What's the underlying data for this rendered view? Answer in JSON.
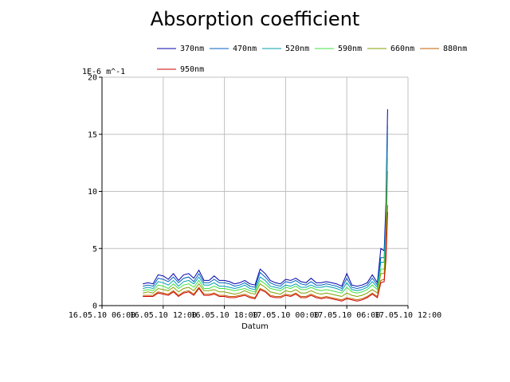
{
  "chart_data": {
    "type": "line",
    "title": "Absorption coefficient",
    "xlabel": "Datum",
    "ylabel": "1E-6 m^-1",
    "ylim": [
      0,
      20
    ],
    "yticks": [
      0,
      5,
      10,
      15,
      20
    ],
    "x_range": [
      "16.05.10 06:00",
      "17.05.10 12:00"
    ],
    "xticks": [
      "16.05.10 06:00",
      "16.05.10 12:00",
      "16.05.10 18:00",
      "17.05.10 00:00",
      "17.05.10 06:00",
      "17.05.10 12:00"
    ],
    "grid": true,
    "legend_position": "top",
    "x": [
      "16.05.10 10:00",
      "16.05.10 10:30",
      "16.05.10 11:00",
      "16.05.10 11:30",
      "16.05.10 12:00",
      "16.05.10 12:30",
      "16.05.10 13:00",
      "16.05.10 13:30",
      "16.05.10 14:00",
      "16.05.10 14:30",
      "16.05.10 15:00",
      "16.05.10 15:30",
      "16.05.10 16:00",
      "16.05.10 16:30",
      "16.05.10 17:00",
      "16.05.10 17:30",
      "16.05.10 18:00",
      "16.05.10 18:30",
      "16.05.10 19:00",
      "16.05.10 19:30",
      "16.05.10 20:00",
      "16.05.10 20:30",
      "16.05.10 21:00",
      "16.05.10 21:30",
      "16.05.10 22:00",
      "16.05.10 22:30",
      "16.05.10 23:00",
      "16.05.10 23:30",
      "17.05.10 00:00",
      "17.05.10 00:30",
      "17.05.10 01:00",
      "17.05.10 01:30",
      "17.05.10 02:00",
      "17.05.10 02:30",
      "17.05.10 03:00",
      "17.05.10 03:30",
      "17.05.10 04:00",
      "17.05.10 04:30",
      "17.05.10 05:00",
      "17.05.10 05:30",
      "17.05.10 06:00",
      "17.05.10 06:30",
      "17.05.10 07:00",
      "17.05.10 07:30",
      "17.05.10 08:00",
      "17.05.10 08:30",
      "17.05.10 09:00",
      "17.05.10 09:20",
      "17.05.10 09:40",
      "17.05.10 09:50",
      "17.05.10 10:00"
    ],
    "series": [
      {
        "name": "370nm",
        "color": "#0000aa",
        "values": [
          1.9,
          2.0,
          1.9,
          2.7,
          2.6,
          2.3,
          2.8,
          2.2,
          2.7,
          2.8,
          2.4,
          3.1,
          2.2,
          2.2,
          2.6,
          2.2,
          2.2,
          2.1,
          1.9,
          2.0,
          2.2,
          1.9,
          1.8,
          3.2,
          2.8,
          2.2,
          2.0,
          1.9,
          2.3,
          2.2,
          2.4,
          2.1,
          2.0,
          2.4,
          2.0,
          2.0,
          2.1,
          2.0,
          1.9,
          1.7,
          2.8,
          1.8,
          1.7,
          1.8,
          2.0,
          2.7,
          2.0,
          5.0,
          4.8,
          9.0,
          17.2
        ]
      },
      {
        "name": "470nm",
        "color": "#0060c0",
        "values": [
          1.7,
          1.8,
          1.7,
          2.4,
          2.3,
          2.1,
          2.5,
          2.0,
          2.4,
          2.5,
          2.1,
          2.8,
          2.0,
          2.0,
          2.3,
          2.0,
          2.0,
          1.9,
          1.7,
          1.8,
          2.0,
          1.7,
          1.6,
          2.9,
          2.5,
          2.0,
          1.8,
          1.7,
          2.1,
          2.0,
          2.2,
          1.9,
          1.8,
          2.1,
          1.8,
          1.8,
          1.9,
          1.8,
          1.7,
          1.5,
          2.4,
          1.6,
          1.5,
          1.6,
          1.8,
          2.4,
          1.8,
          4.2,
          4.2,
          8.0,
          15.8
        ]
      },
      {
        "name": "520nm",
        "color": "#00a0b0",
        "values": [
          1.5,
          1.6,
          1.5,
          2.1,
          2.0,
          1.8,
          2.2,
          1.7,
          2.1,
          2.2,
          1.9,
          2.5,
          1.8,
          1.8,
          2.0,
          1.7,
          1.7,
          1.6,
          1.5,
          1.6,
          1.8,
          1.5,
          1.4,
          2.5,
          2.2,
          1.7,
          1.6,
          1.5,
          1.8,
          1.7,
          1.9,
          1.6,
          1.6,
          1.8,
          1.6,
          1.6,
          1.7,
          1.6,
          1.5,
          1.3,
          2.0,
          1.4,
          1.3,
          1.4,
          1.6,
          2.1,
          1.6,
          3.8,
          3.8,
          7.0,
          14.8
        ]
      },
      {
        "name": "590nm",
        "color": "#40e040",
        "values": [
          1.3,
          1.4,
          1.3,
          1.8,
          1.7,
          1.5,
          1.9,
          1.5,
          1.8,
          1.9,
          1.6,
          2.2,
          1.5,
          1.5,
          1.7,
          1.5,
          1.5,
          1.4,
          1.3,
          1.4,
          1.5,
          1.3,
          1.2,
          2.2,
          1.9,
          1.5,
          1.4,
          1.3,
          1.6,
          1.5,
          1.7,
          1.4,
          1.4,
          1.6,
          1.4,
          1.3,
          1.4,
          1.3,
          1.2,
          1.1,
          1.6,
          1.2,
          1.1,
          1.2,
          1.4,
          1.8,
          1.4,
          3.2,
          3.2,
          6.0,
          13.0
        ]
      },
      {
        "name": "660nm",
        "color": "#80a000",
        "values": [
          1.1,
          1.2,
          1.1,
          1.5,
          1.4,
          1.3,
          1.6,
          1.2,
          1.5,
          1.6,
          1.3,
          1.9,
          1.3,
          1.3,
          1.4,
          1.2,
          1.2,
          1.1,
          1.0,
          1.1,
          1.3,
          1.1,
          1.0,
          1.9,
          1.6,
          1.2,
          1.1,
          1.0,
          1.3,
          1.2,
          1.4,
          1.1,
          1.1,
          1.3,
          1.1,
          1.0,
          1.1,
          1.0,
          0.9,
          0.8,
          1.1,
          0.9,
          0.8,
          0.9,
          1.1,
          1.4,
          1.1,
          2.8,
          2.8,
          5.3,
          11.8
        ]
      },
      {
        "name": "880nm",
        "color": "#c06000",
        "values": [
          0.9,
          0.9,
          0.9,
          1.2,
          1.1,
          1.0,
          1.3,
          0.9,
          1.2,
          1.3,
          1.0,
          1.6,
          1.0,
          1.0,
          1.1,
          0.9,
          0.9,
          0.8,
          0.8,
          0.9,
          1.0,
          0.8,
          0.7,
          1.5,
          1.3,
          0.9,
          0.8,
          0.8,
          1.0,
          0.9,
          1.1,
          0.8,
          0.8,
          1.0,
          0.8,
          0.7,
          0.8,
          0.7,
          0.6,
          0.5,
          0.7,
          0.6,
          0.5,
          0.6,
          0.8,
          1.1,
          0.8,
          2.2,
          2.3,
          4.5,
          8.8
        ]
      },
      {
        "name": "950nm",
        "color": "#d00000",
        "values": [
          0.8,
          0.8,
          0.8,
          1.1,
          1.0,
          0.9,
          1.2,
          0.8,
          1.1,
          1.2,
          0.9,
          1.5,
          0.9,
          0.9,
          1.0,
          0.8,
          0.8,
          0.7,
          0.7,
          0.8,
          0.9,
          0.7,
          0.6,
          1.4,
          1.2,
          0.8,
          0.7,
          0.7,
          0.9,
          0.8,
          1.0,
          0.7,
          0.7,
          0.9,
          0.7,
          0.6,
          0.7,
          0.6,
          0.5,
          0.4,
          0.6,
          0.5,
          0.4,
          0.5,
          0.7,
          1.0,
          0.7,
          2.0,
          2.1,
          4.0,
          8.2
        ]
      }
    ]
  }
}
